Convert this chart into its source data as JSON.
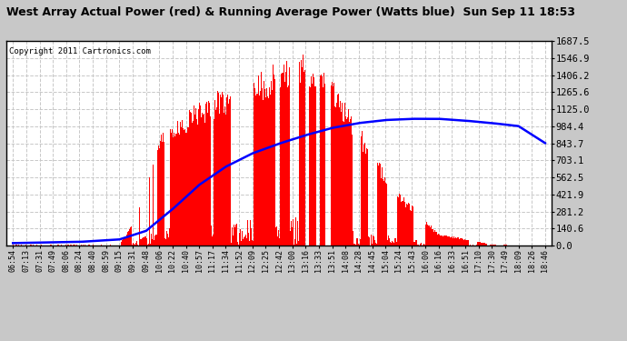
{
  "title": "West Array Actual Power (red) & Running Average Power (Watts blue)  Sun Sep 11 18:53",
  "copyright": "Copyright 2011 Cartronics.com",
  "ymax": 1687.5,
  "ymin": 0.0,
  "yticks": [
    0.0,
    140.6,
    281.2,
    421.9,
    562.5,
    703.1,
    843.7,
    984.4,
    1125.0,
    1265.6,
    1406.2,
    1546.9,
    1687.5
  ],
  "ytick_labels": [
    "0.0",
    "140.6",
    "281.2",
    "421.9",
    "562.5",
    "703.1",
    "843.7",
    "984.4",
    "1125.0",
    "1265.6",
    "1406.2",
    "1546.9",
    "1687.5"
  ],
  "xtick_labels": [
    "06:54",
    "07:13",
    "07:31",
    "07:49",
    "08:06",
    "08:24",
    "08:40",
    "08:59",
    "09:15",
    "09:31",
    "09:48",
    "10:06",
    "10:22",
    "10:40",
    "10:57",
    "11:17",
    "11:34",
    "11:52",
    "12:09",
    "12:25",
    "12:42",
    "13:00",
    "13:16",
    "13:33",
    "13:51",
    "14:08",
    "14:28",
    "14:45",
    "15:04",
    "15:24",
    "15:43",
    "16:00",
    "16:16",
    "16:33",
    "16:51",
    "17:10",
    "17:30",
    "17:49",
    "18:09",
    "18:26",
    "18:46"
  ],
  "n_xticks": 41,
  "background_color": "#c8c8c8",
  "plot_bg_color": "#ffffff",
  "bar_color": "#ff0000",
  "line_color": "#0000ff",
  "title_color": "#000000",
  "grid_color": "#c8c8c8",
  "n_points": 720
}
